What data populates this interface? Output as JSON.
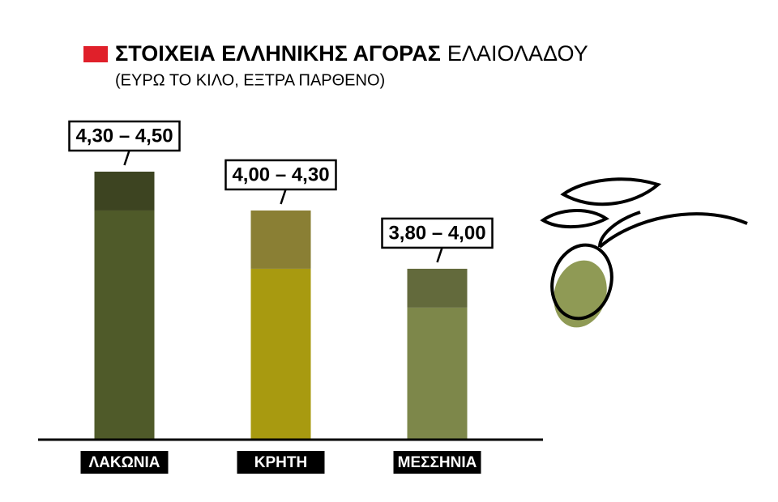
{
  "chart_data": {
    "type": "range-bar",
    "title_bold": "ΣΤΟΙΧΕΙΑ ΕΛΛΗΝΙΚΗΣ ΑΓΟΡΑΣ",
    "title_light": "ΕΛΑΙΟΛΑΔΟΥ",
    "subtitle": "(ΕΥΡΩ ΤΟ ΚΙΛΟ, ΕΞΤΡΑ ΠΑΡΘΕΝΟ)",
    "categories": [
      "ΛΑΚΩΝΙΑ",
      "ΚΡΗΤΗ",
      "ΜΕΣΣΗΝΙΑ"
    ],
    "low": [
      4.3,
      4.0,
      3.8
    ],
    "high": [
      4.5,
      4.3,
      4.0
    ],
    "value_labels": [
      "4,30 – 4,50",
      "4,00 – 4,30",
      "3,80 – 4,00"
    ],
    "low_colors": [
      "#4f5a29",
      "#a89a10",
      "#7d874a"
    ],
    "high_colors": [
      "#3d4421",
      "#8a7f34",
      "#636a3c"
    ],
    "ylim": [
      3.12,
      4.5
    ]
  }
}
